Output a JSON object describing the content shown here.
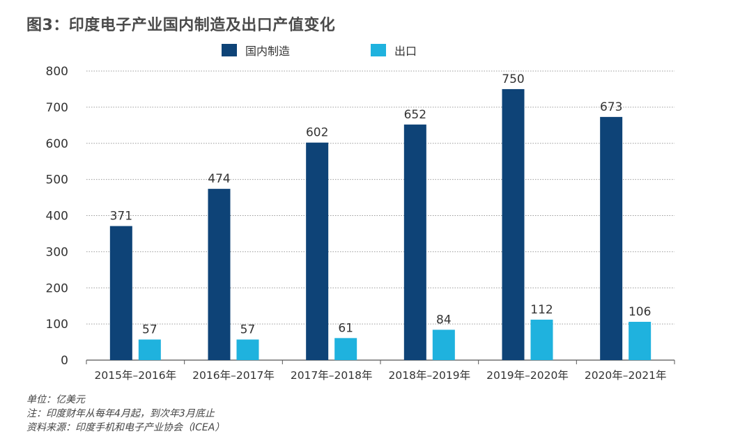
{
  "title": "图3：印度电子产业国内制造及出口产值变化",
  "colors": {
    "domestic": "#0e4377",
    "export": "#1fb2de",
    "grid": "#9a9a9a",
    "axis": "#555555"
  },
  "chart_data": {
    "type": "bar",
    "categories": [
      "2015年–2016年",
      "2016年–2017年",
      "2017年–2018年",
      "2018年–2019年",
      "2019年–2020年",
      "2020年–2021年"
    ],
    "series": [
      {
        "name": "国内制造",
        "values": [
          371,
          474,
          602,
          652,
          750,
          673
        ]
      },
      {
        "name": "出口",
        "values": [
          57,
          57,
          61,
          84,
          112,
          106
        ]
      }
    ],
    "ylim": [
      0,
      800
    ],
    "yticks": [
      0,
      100,
      200,
      300,
      400,
      500,
      600,
      700,
      800
    ],
    "legend": "top",
    "grid": true,
    "data_labels": true
  },
  "notes": {
    "unit": "单位：亿美元",
    "note": "注：印度财年从每年4月起，到次年3月底止",
    "source": "资料来源：印度手机和电子产业协会（ICEA）"
  }
}
